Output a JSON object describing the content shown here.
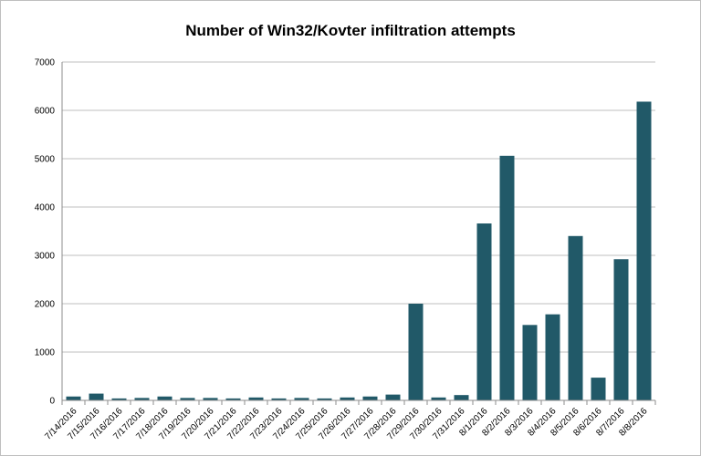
{
  "chart_data": {
    "type": "bar",
    "title": "Number of Win32/Kovter infiltration attempts",
    "xlabel": "",
    "ylabel": "",
    "ylim": [
      0,
      7000
    ],
    "yticks": [
      0,
      1000,
      2000,
      3000,
      4000,
      5000,
      6000,
      7000
    ],
    "grid": true,
    "legend": "none",
    "bar_color": "#215968",
    "categories": [
      "7/14/2016",
      "7/15/2016",
      "7/16/2016",
      "7/17/2016",
      "7/18/2016",
      "7/19/2016",
      "7/20/2016",
      "7/21/2016",
      "7/22/2016",
      "7/23/2016",
      "7/24/2016",
      "7/25/2016",
      "7/26/2016",
      "7/27/2016",
      "7/28/2016",
      "7/29/2016",
      "7/30/2016",
      "7/31/2016",
      "8/1/2016",
      "8/2/2016",
      "8/3/2016",
      "8/4/2016",
      "8/5/2016",
      "8/6/2016",
      "8/7/2016",
      "8/8/2016"
    ],
    "values": [
      80,
      140,
      40,
      50,
      80,
      50,
      50,
      40,
      60,
      40,
      50,
      40,
      60,
      80,
      120,
      2000,
      60,
      110,
      3660,
      5060,
      1560,
      1780,
      3400,
      470,
      2920,
      6180
    ]
  }
}
